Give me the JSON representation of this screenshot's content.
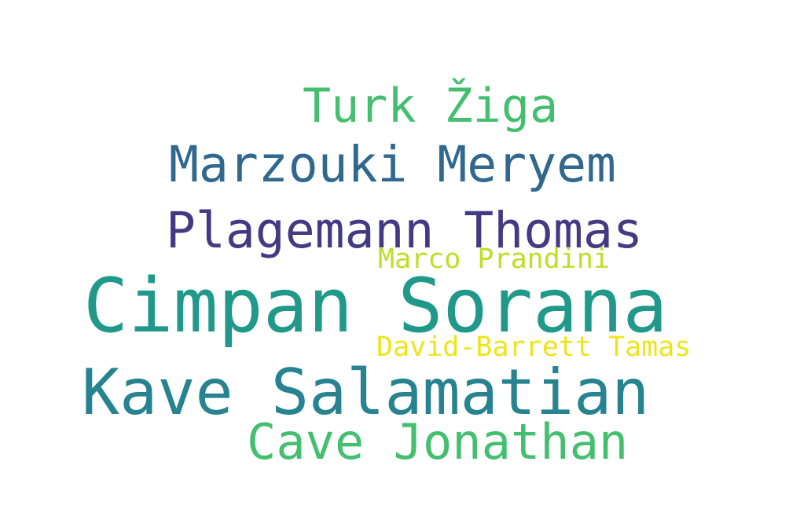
{
  "words": [
    {
      "text": "Cimpan Sorana",
      "color": "#21998a"
    },
    {
      "text": "Kave Salamatian",
      "color": "#26838f"
    },
    {
      "text": "Plagemann Thomas",
      "color": "#443a83"
    },
    {
      "text": "Marzouki Meryem",
      "color": "#30688e"
    },
    {
      "text": "Cave Jonathan",
      "color": "#44bf70"
    },
    {
      "text": "Turk Žiga",
      "color": "#44bf70"
    },
    {
      "text": "Marco Prandini",
      "color": "#bddf26"
    },
    {
      "text": "David-Barrett Tamas",
      "color": "#ede51b"
    }
  ]
}
